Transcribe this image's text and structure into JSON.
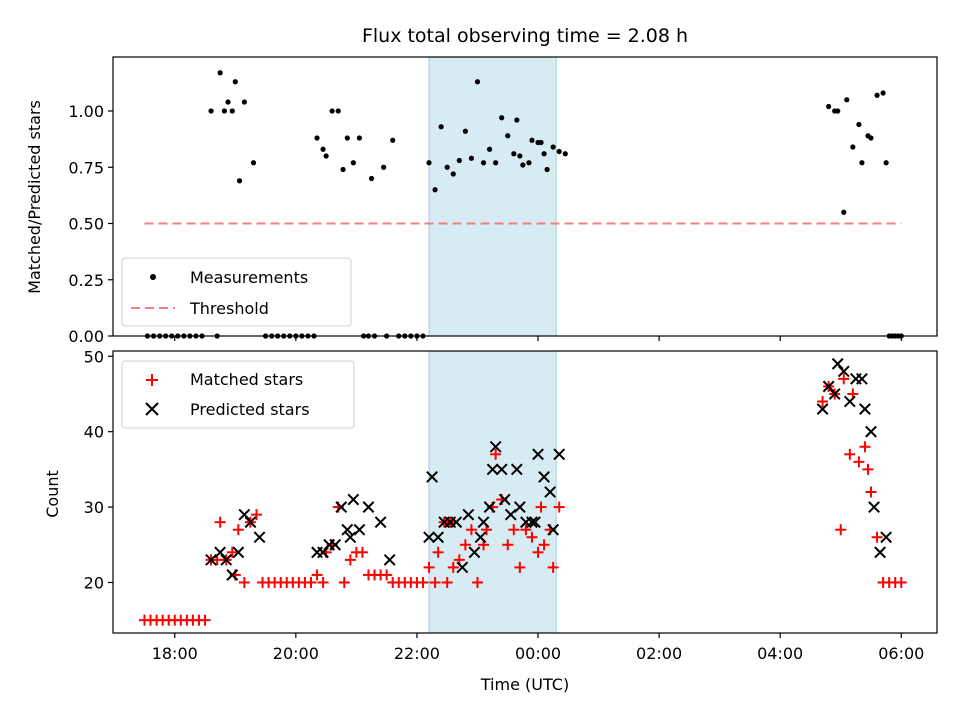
{
  "chart_data": [
    {
      "type": "scatter",
      "panel": "top",
      "title": "Flux total observing time = 2.08 h",
      "ylabel": "Matched/Predicted stars",
      "xlabel": "",
      "ylim": [
        0.0,
        1.24
      ],
      "yticks": [
        0.0,
        0.25,
        0.5,
        0.75,
        1.0
      ],
      "ytick_labels": [
        "0.00",
        "0.25",
        "0.50",
        "0.75",
        "1.00"
      ],
      "legend": [
        "Measurements",
        "Threshold"
      ],
      "legend_position": "lower-left",
      "shaded_interval": {
        "start": 22.2,
        "end": 24.3,
        "color": "#add8e6"
      },
      "threshold": {
        "value": 0.5,
        "x_start": 17.5,
        "x_end": 30.0,
        "color": "#f08080"
      },
      "series": [
        {
          "name": "Measurements",
          "marker": "dot",
          "color": "#000000",
          "points": [
            [
              17.55,
              0
            ],
            [
              17.65,
              0
            ],
            [
              17.75,
              0
            ],
            [
              17.85,
              0
            ],
            [
              17.95,
              0
            ],
            [
              18.05,
              0
            ],
            [
              18.15,
              0
            ],
            [
              18.25,
              0
            ],
            [
              18.35,
              0
            ],
            [
              18.45,
              0
            ],
            [
              18.6,
              1.0
            ],
            [
              18.7,
              0
            ],
            [
              18.75,
              1.17
            ],
            [
              18.82,
              1.0
            ],
            [
              18.88,
              1.04
            ],
            [
              18.95,
              1.0
            ],
            [
              19.0,
              1.13
            ],
            [
              19.07,
              0.69
            ],
            [
              19.15,
              1.04
            ],
            [
              19.3,
              0.77
            ],
            [
              19.5,
              0
            ],
            [
              19.6,
              0
            ],
            [
              19.7,
              0
            ],
            [
              19.8,
              0
            ],
            [
              19.9,
              0
            ],
            [
              20.0,
              0
            ],
            [
              20.1,
              0
            ],
            [
              20.2,
              0
            ],
            [
              20.3,
              0
            ],
            [
              20.35,
              0.88
            ],
            [
              20.45,
              0.83
            ],
            [
              20.5,
              0.8
            ],
            [
              20.6,
              1.0
            ],
            [
              20.7,
              1.0
            ],
            [
              20.78,
              0.74
            ],
            [
              20.85,
              0.88
            ],
            [
              20.95,
              0.77
            ],
            [
              21.05,
              0.88
            ],
            [
              21.25,
              0.7
            ],
            [
              21.45,
              0.75
            ],
            [
              21.6,
              0.87
            ],
            [
              21.12,
              0
            ],
            [
              21.2,
              0
            ],
            [
              21.3,
              0
            ],
            [
              21.5,
              0
            ],
            [
              21.7,
              0
            ],
            [
              21.8,
              0
            ],
            [
              21.9,
              0
            ],
            [
              22.0,
              0
            ],
            [
              22.1,
              0
            ],
            [
              22.2,
              0.77
            ],
            [
              22.3,
              0.65
            ],
            [
              22.4,
              0.93
            ],
            [
              22.5,
              0.75
            ],
            [
              22.6,
              0.72
            ],
            [
              22.7,
              0.78
            ],
            [
              22.8,
              0.91
            ],
            [
              22.9,
              0.79
            ],
            [
              23.0,
              1.13
            ],
            [
              23.1,
              0.77
            ],
            [
              23.2,
              0.83
            ],
            [
              23.3,
              0.77
            ],
            [
              23.4,
              0.97
            ],
            [
              23.5,
              0.89
            ],
            [
              23.6,
              0.81
            ],
            [
              23.7,
              0.8
            ],
            [
              23.75,
              0.76
            ],
            [
              23.85,
              0.77
            ],
            [
              23.9,
              0.87
            ],
            [
              24.0,
              0.86
            ],
            [
              24.1,
              0.81
            ],
            [
              24.15,
              0.74
            ],
            [
              24.25,
              0.84
            ],
            [
              24.35,
              0.82
            ],
            [
              24.45,
              0.81
            ],
            [
              23.65,
              0.96
            ],
            [
              24.05,
              0.86
            ],
            [
              28.8,
              1.02
            ],
            [
              28.9,
              1.0
            ],
            [
              28.95,
              1.0
            ],
            [
              29.05,
              0.55
            ],
            [
              29.1,
              1.05
            ],
            [
              29.2,
              0.84
            ],
            [
              29.3,
              0.94
            ],
            [
              29.35,
              0.77
            ],
            [
              29.45,
              0.89
            ],
            [
              29.5,
              0.88
            ],
            [
              29.6,
              1.07
            ],
            [
              29.7,
              1.08
            ],
            [
              29.75,
              0.77
            ],
            [
              29.8,
              0
            ],
            [
              29.85,
              0
            ],
            [
              29.9,
              0
            ],
            [
              29.95,
              0
            ],
            [
              30.0,
              0
            ]
          ]
        }
      ]
    },
    {
      "type": "scatter",
      "panel": "bottom",
      "title": "",
      "xlabel": "Time (UTC)",
      "ylabel": "Count",
      "xlim": [
        16.98,
        30.59
      ],
      "ylim": [
        13.3,
        50.7
      ],
      "yticks": [
        20,
        30,
        40,
        50
      ],
      "ytick_labels": [
        "20",
        "30",
        "40",
        "50"
      ],
      "xticks": [
        18,
        20,
        22,
        24,
        26,
        28,
        30
      ],
      "xtick_labels": [
        "18:00",
        "20:00",
        "22:00",
        "00:00",
        "02:00",
        "04:00",
        "06:00"
      ],
      "legend": [
        "Matched stars",
        "Predicted stars"
      ],
      "legend_position": "upper-left",
      "shaded_interval": {
        "start": 22.2,
        "end": 24.3,
        "color": "#add8e6"
      },
      "series": [
        {
          "name": "Matched stars",
          "marker": "plus",
          "color": "#ff0000",
          "points": [
            [
              17.5,
              15
            ],
            [
              17.6,
              15
            ],
            [
              17.7,
              15
            ],
            [
              17.8,
              15
            ],
            [
              17.9,
              15
            ],
            [
              18.0,
              15
            ],
            [
              18.1,
              15
            ],
            [
              18.2,
              15
            ],
            [
              18.3,
              15
            ],
            [
              18.4,
              15
            ],
            [
              18.5,
              15
            ],
            [
              18.6,
              23
            ],
            [
              18.7,
              23
            ],
            [
              18.75,
              28
            ],
            [
              18.85,
              23
            ],
            [
              18.95,
              24
            ],
            [
              19.0,
              21
            ],
            [
              19.05,
              27
            ],
            [
              19.15,
              20
            ],
            [
              19.25,
              28
            ],
            [
              19.35,
              29
            ],
            [
              19.45,
              20
            ],
            [
              19.55,
              20
            ],
            [
              19.65,
              20
            ],
            [
              19.75,
              20
            ],
            [
              19.85,
              20
            ],
            [
              19.95,
              20
            ],
            [
              20.05,
              20
            ],
            [
              20.15,
              20
            ],
            [
              20.25,
              20
            ],
            [
              20.35,
              21
            ],
            [
              20.45,
              20
            ],
            [
              20.5,
              24
            ],
            [
              20.6,
              25
            ],
            [
              20.7,
              30
            ],
            [
              20.8,
              20
            ],
            [
              20.9,
              23
            ],
            [
              21.0,
              24
            ],
            [
              21.1,
              24
            ],
            [
              21.2,
              21
            ],
            [
              21.3,
              21
            ],
            [
              21.4,
              21
            ],
            [
              21.5,
              21
            ],
            [
              21.6,
              20
            ],
            [
              21.7,
              20
            ],
            [
              21.8,
              20
            ],
            [
              21.9,
              20
            ],
            [
              22.0,
              20
            ],
            [
              22.1,
              20
            ],
            [
              22.2,
              22
            ],
            [
              22.3,
              20
            ],
            [
              22.35,
              24
            ],
            [
              22.45,
              28
            ],
            [
              22.5,
              20
            ],
            [
              22.55,
              28
            ],
            [
              22.6,
              22
            ],
            [
              22.7,
              23
            ],
            [
              22.8,
              25
            ],
            [
              22.9,
              27
            ],
            [
              23.0,
              20
            ],
            [
              23.1,
              25
            ],
            [
              23.15,
              27
            ],
            [
              23.25,
              30
            ],
            [
              23.3,
              37
            ],
            [
              23.4,
              31
            ],
            [
              23.5,
              25
            ],
            [
              23.6,
              27
            ],
            [
              23.7,
              22
            ],
            [
              23.8,
              27
            ],
            [
              23.9,
              26
            ],
            [
              24.0,
              24
            ],
            [
              24.05,
              30
            ],
            [
              24.1,
              25
            ],
            [
              24.2,
              27
            ],
            [
              24.25,
              22
            ],
            [
              24.35,
              30
            ],
            [
              28.7,
              44
            ],
            [
              28.8,
              46
            ],
            [
              28.9,
              45
            ],
            [
              29.0,
              27
            ],
            [
              29.05,
              47
            ],
            [
              29.15,
              37
            ],
            [
              29.2,
              45
            ],
            [
              29.3,
              36
            ],
            [
              29.4,
              38
            ],
            [
              29.45,
              35
            ],
            [
              29.5,
              32
            ],
            [
              29.6,
              26
            ],
            [
              29.7,
              20
            ],
            [
              29.8,
              20
            ],
            [
              29.9,
              20
            ],
            [
              30.0,
              20
            ]
          ]
        },
        {
          "name": "Predicted stars",
          "marker": "x",
          "color": "#000000",
          "points": [
            [
              18.6,
              23
            ],
            [
              18.75,
              24
            ],
            [
              18.85,
              23
            ],
            [
              18.95,
              21
            ],
            [
              19.05,
              24
            ],
            [
              19.15,
              29
            ],
            [
              19.25,
              28
            ],
            [
              19.4,
              26
            ],
            [
              20.35,
              24
            ],
            [
              20.45,
              24
            ],
            [
              20.55,
              25
            ],
            [
              20.65,
              25
            ],
            [
              20.75,
              30
            ],
            [
              20.85,
              27
            ],
            [
              20.9,
              26
            ],
            [
              20.95,
              31
            ],
            [
              21.05,
              27
            ],
            [
              21.2,
              30
            ],
            [
              21.4,
              28
            ],
            [
              21.55,
              23
            ],
            [
              22.2,
              26
            ],
            [
              22.25,
              34
            ],
            [
              22.35,
              26
            ],
            [
              22.45,
              28
            ],
            [
              22.55,
              28
            ],
            [
              22.65,
              28
            ],
            [
              22.75,
              22
            ],
            [
              22.85,
              29
            ],
            [
              22.95,
              24
            ],
            [
              23.05,
              26
            ],
            [
              23.1,
              28
            ],
            [
              23.2,
              30
            ],
            [
              23.25,
              35
            ],
            [
              23.3,
              38
            ],
            [
              23.4,
              35
            ],
            [
              23.45,
              31
            ],
            [
              23.55,
              29
            ],
            [
              23.65,
              35
            ],
            [
              23.7,
              30
            ],
            [
              23.8,
              28
            ],
            [
              23.9,
              28
            ],
            [
              23.95,
              28
            ],
            [
              24.0,
              37
            ],
            [
              24.1,
              34
            ],
            [
              24.2,
              32
            ],
            [
              24.25,
              27
            ],
            [
              24.35,
              37
            ],
            [
              28.7,
              43
            ],
            [
              28.8,
              46
            ],
            [
              28.9,
              45
            ],
            [
              28.95,
              49
            ],
            [
              29.05,
              48
            ],
            [
              29.15,
              44
            ],
            [
              29.25,
              47
            ],
            [
              29.35,
              47
            ],
            [
              29.4,
              43
            ],
            [
              29.5,
              40
            ],
            [
              29.55,
              30
            ],
            [
              29.65,
              24
            ],
            [
              29.75,
              26
            ]
          ]
        }
      ]
    }
  ]
}
